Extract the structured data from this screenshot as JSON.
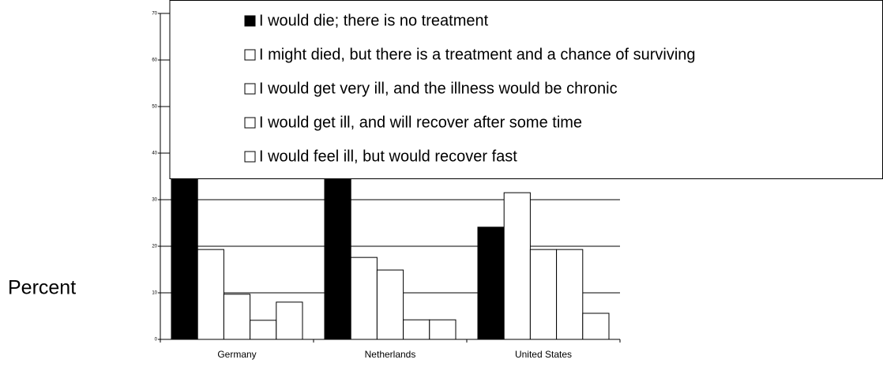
{
  "chart_data": {
    "type": "bar",
    "ylabel": "Percent",
    "categories": [
      "Germany",
      "Netherlands",
      "United  States"
    ],
    "series": [
      {
        "name": "I would die; there is no treatment",
        "color": "#000000",
        "values": [
          58.5,
          58.5,
          24.1
        ]
      },
      {
        "name": "I might died, but there is a treatment and a chance of surviving",
        "color": "#ffffff",
        "values": [
          19.3,
          17.6,
          31.5
        ]
      },
      {
        "name": "I would get very ill, and the illness would be chronic",
        "color": "#ffffff",
        "values": [
          9.7,
          14.9,
          19.3
        ]
      },
      {
        "name": "I would get ill, and will recover after some time",
        "color": "#ffffff",
        "values": [
          4.1,
          4.2,
          19.3
        ]
      },
      {
        "name": "I would feel ill, but would recover fast",
        "color": "#ffffff",
        "values": [
          8.0,
          4.2,
          5.6
        ]
      }
    ],
    "ylim": [
      0,
      70
    ],
    "yticks": [
      0,
      10,
      20,
      30,
      40,
      50,
      60,
      70
    ],
    "grid": true,
    "legend": "top-right"
  }
}
